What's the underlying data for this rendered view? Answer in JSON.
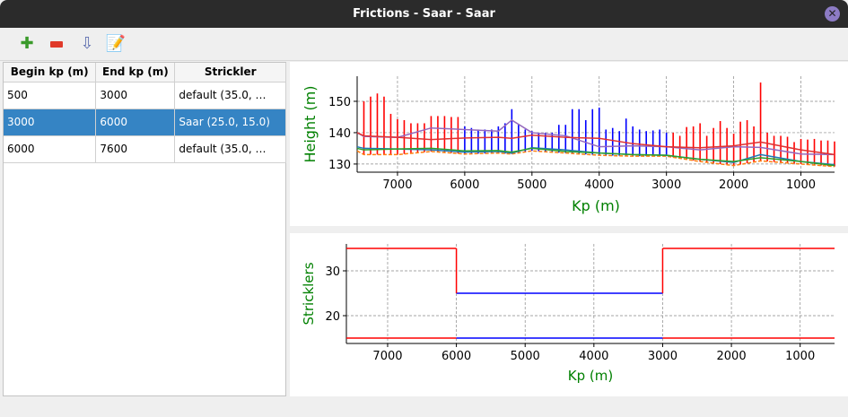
{
  "window": {
    "title": "Frictions - Saar - Saar",
    "close_icon": "close-icon"
  },
  "toolbar": {
    "items": [
      {
        "icon": "add-icon",
        "label": "Add"
      },
      {
        "icon": "remove-icon",
        "label": "Delete"
      },
      {
        "icon": "sort-icon",
        "label": "Sort"
      },
      {
        "icon": "edit-icon",
        "label": "Edit"
      }
    ]
  },
  "table": {
    "headers": [
      "Begin kp (m)",
      "End kp (m)",
      "Strickler"
    ],
    "rows": [
      [
        "500",
        "3000",
        "default (35.0, …"
      ],
      [
        "3000",
        "6000",
        "Saar (25.0, 15.0)"
      ],
      [
        "6000",
        "7600",
        "default (35.0, …"
      ]
    ],
    "selected_row": 1,
    "selection_color": "#3584c4"
  },
  "chart_data": [
    {
      "type": "line",
      "xlabel": "Kp (m)",
      "ylabel": "Height (m)",
      "xlim": [
        7600,
        500
      ],
      "ylim": [
        127.4,
        158
      ],
      "xticks": [
        7000,
        6000,
        5000,
        4000,
        3000,
        2000,
        1000
      ],
      "yticks": [
        130,
        140,
        150
      ],
      "grid": true,
      "label_color": "#008000",
      "x": [
        7600,
        7500,
        7000,
        6500,
        6000,
        5500,
        5300,
        5000,
        4500,
        4000,
        3500,
        3000,
        2500,
        2000,
        1600,
        1000,
        500
      ],
      "series": [
        {
          "color": "#e03030",
          "values": [
            140,
            139,
            138.5,
            137.8,
            138.3,
            138.5,
            138.2,
            139.2,
            138.5,
            138.2,
            136.5,
            135.5,
            135.2,
            135.8,
            137,
            134.5,
            133
          ]
        },
        {
          "color": "#9467bd",
          "values": [
            140,
            138.8,
            138.5,
            141.5,
            141,
            140.5,
            144,
            140,
            139,
            135.5,
            135.8,
            135.5,
            134.5,
            135.5,
            135.3,
            133.2,
            133
          ]
        },
        {
          "color": "#2ca02c",
          "values": [
            135,
            134.5,
            134.8,
            135,
            134.2,
            134.3,
            133.8,
            135,
            134,
            133.5,
            133,
            132.8,
            131.5,
            130.8,
            132,
            130.8,
            129.5
          ]
        },
        {
          "color": "#1f77b4",
          "values": [
            135.5,
            135,
            134.8,
            134.5,
            133.8,
            134,
            133.5,
            135.2,
            134.5,
            133.5,
            133,
            132.8,
            131.5,
            130.5,
            133,
            130.8,
            129.8
          ]
        },
        {
          "color": "#ff7f0e",
          "dashed": true,
          "values": [
            134.2,
            133,
            133,
            134,
            133.2,
            133.5,
            133.2,
            134.2,
            133.5,
            132.8,
            132.5,
            132.5,
            130.8,
            129.5,
            131,
            130,
            129.2
          ]
        }
      ],
      "bars": {
        "kp": [
          7500,
          7400,
          7300,
          7200,
          7100,
          7000,
          6900,
          6800,
          6700,
          6600,
          6500,
          6400,
          6300,
          6200,
          6100,
          6000,
          5900,
          5800,
          5700,
          5600,
          5500,
          5400,
          5300,
          5200,
          5100,
          5000,
          4900,
          4800,
          4700,
          4600,
          4500,
          4400,
          4300,
          4200,
          4100,
          4000,
          3900,
          3800,
          3700,
          3600,
          3500,
          3400,
          3300,
          3200,
          3100,
          3000,
          2900,
          2800,
          2700,
          2600,
          2500,
          2400,
          2300,
          2200,
          2100,
          2000,
          1900,
          1800,
          1700,
          1600,
          1500,
          1400,
          1300,
          1200,
          1100,
          1000,
          900,
          800,
          700,
          600,
          500
        ],
        "top": [
          150,
          151.5,
          152.5,
          151.5,
          146,
          144.3,
          144,
          143,
          143,
          143,
          145.3,
          145.3,
          145.3,
          145,
          145,
          142,
          141.5,
          141,
          141,
          141,
          142,
          143,
          147.5,
          142.5,
          141,
          140.5,
          140,
          140,
          140,
          142.5,
          142.5,
          147.5,
          147.5,
          144,
          147.5,
          148,
          141,
          141.5,
          140.5,
          144.5,
          142,
          141,
          140.5,
          140.7,
          141,
          140,
          140,
          139,
          141.8,
          142,
          143,
          139,
          141.5,
          143.7,
          141.5,
          139.7,
          143.5,
          144,
          142,
          156,
          140,
          139,
          139,
          138.7,
          137,
          138,
          137.8,
          138,
          137.5,
          137.5,
          137.2
        ],
        "colors": {
          "default": "#ff0000",
          "selected": "#0000ff"
        }
      }
    },
    {
      "type": "line",
      "xlabel": "Kp (m)",
      "ylabel": "Stricklers",
      "xlim": [
        7600,
        500
      ],
      "ylim": [
        13.8,
        36
      ],
      "xticks": [
        7000,
        6000,
        5000,
        4000,
        3000,
        2000,
        1000
      ],
      "yticks": [
        20,
        30
      ],
      "grid": true,
      "label_color": "#008000",
      "series": [
        {
          "color": "#ff0000",
          "segments": [
            {
              "x": [
                7600,
                6000
              ],
              "minor": 35,
              "medium": 15
            },
            {
              "x": [
                3000,
                500
              ],
              "minor": 35,
              "medium": 15
            }
          ]
        },
        {
          "color": "#0000ff",
          "segments": [
            {
              "x": [
                6000,
                3000
              ],
              "minor": 25,
              "medium": 15
            }
          ]
        }
      ]
    }
  ]
}
